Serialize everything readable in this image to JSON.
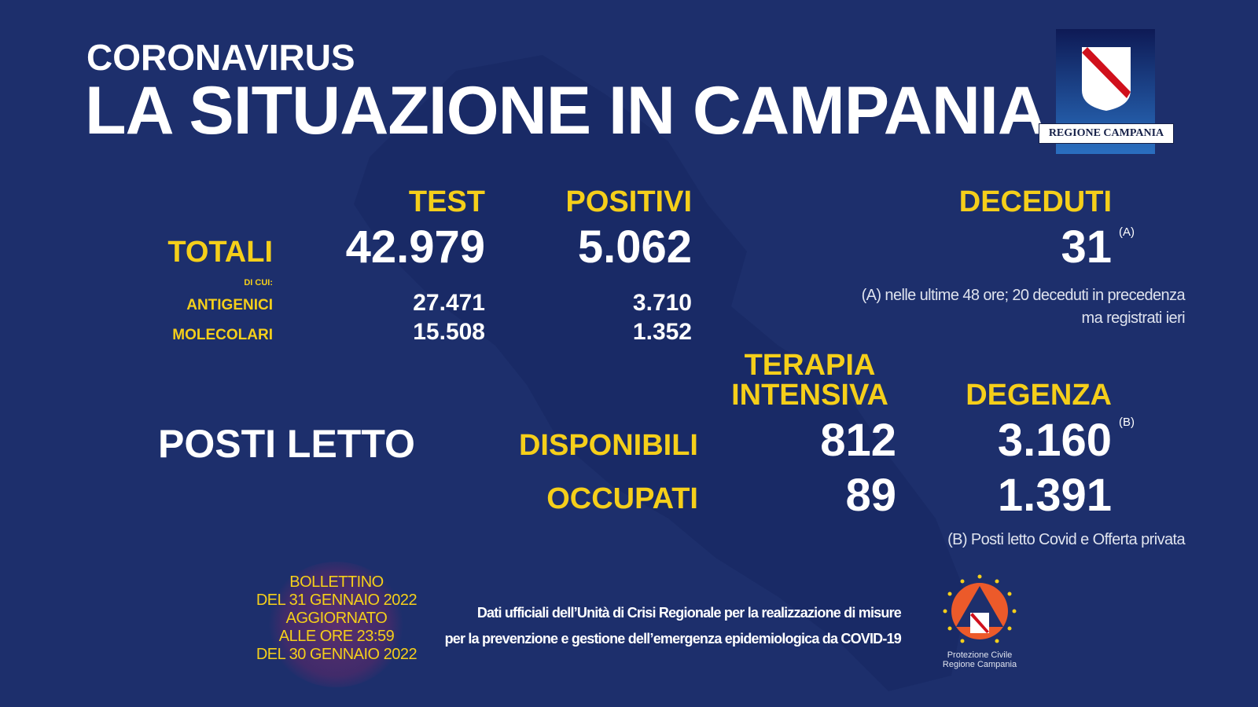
{
  "header": {
    "kicker": "CORONAVIRUS",
    "title": "LA SITUAZIONE IN CAMPANIA",
    "logo_text": "REGIONE CAMPANIA"
  },
  "columns": {
    "test": "TEST",
    "positivi": "POSITIVI",
    "deceduti": "DECEDUTI"
  },
  "totali": {
    "label": "TOTALI",
    "test": "42.979",
    "positivi": "5.062",
    "deceduti": "31",
    "deceduti_note_marker": "(A)"
  },
  "di_cui": "DI CUI:",
  "antigenici": {
    "label": "ANTIGENICI",
    "test": "27.471",
    "positivi": "3.710"
  },
  "molecolari": {
    "label": "MOLECOLARI",
    "test": "15.508",
    "positivi": "1.352"
  },
  "note_a": {
    "line1": "(A) nelle ultime 48 ore; 20 deceduti in precedenza",
    "line2": "ma registrati ieri"
  },
  "posti_letto": {
    "label": "POSTI LETTO",
    "terapia_line1": "TERAPIA",
    "terapia_line2": "INTENSIVA",
    "degenza": "DEGENZA",
    "disponibili": {
      "label": "DISPONIBILI",
      "terapia": "812",
      "degenza": "3.160",
      "marker": "(B)"
    },
    "occupati": {
      "label": "OCCUPATI",
      "terapia": "89",
      "degenza": "1.391"
    }
  },
  "note_b": "(B) Posti letto Covid e Offerta privata",
  "bollettino": [
    "BOLLETTINO",
    "DEL 31 GENNAIO 2022",
    "AGGIORNATO",
    "ALLE ORE 23:59",
    "DEL 30 GENNAIO 2022"
  ],
  "footer": {
    "line1": "Dati ufficiali dell’Unità di Crisi Regionale per la realizzazione di misure",
    "line2": "per la prevenzione e gestione dell’emergenza epidemiologica da COVID-19",
    "logo_line1": "Protezione Civile",
    "logo_line2": "Regione Campania"
  },
  "colors": {
    "background": "#1d2f6c",
    "accent": "#f5cf1a"
  }
}
